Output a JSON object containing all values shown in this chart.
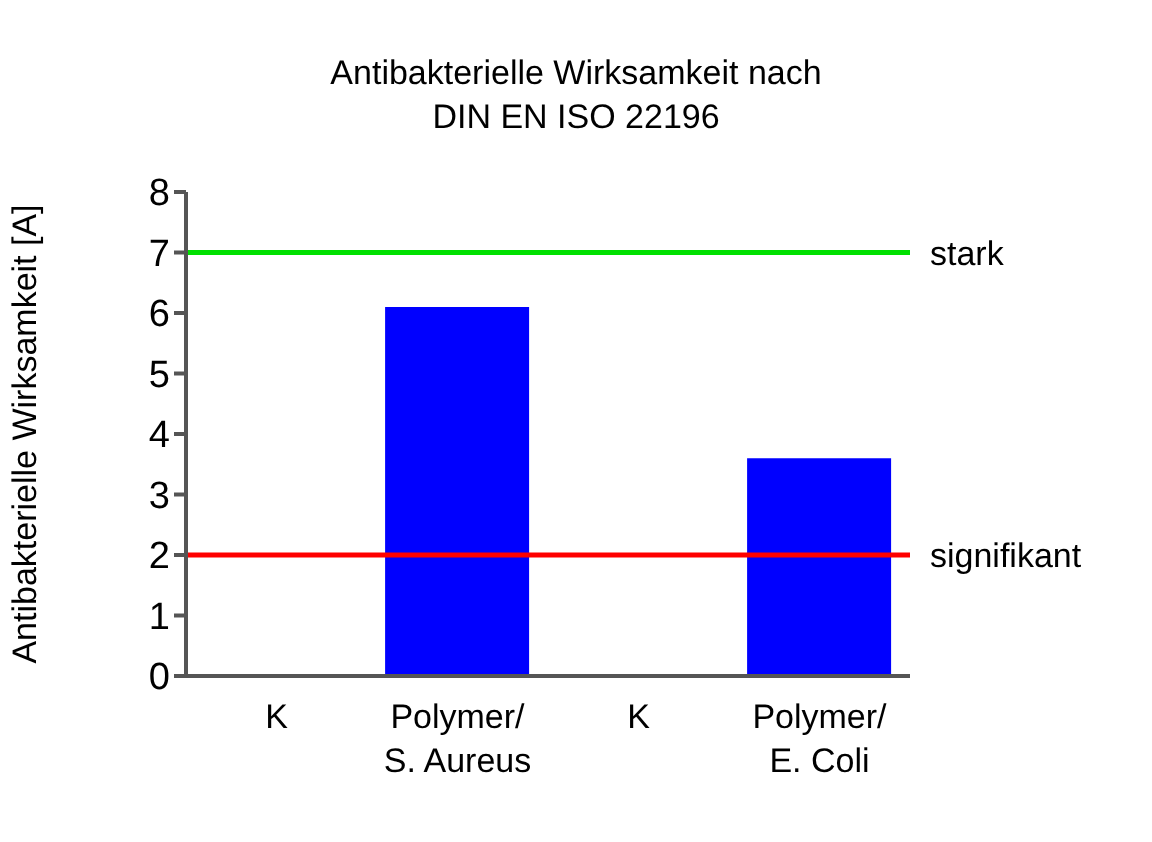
{
  "chart_data": {
    "type": "bar",
    "title": "Antibakterielle Wirksamkeit nach\nDIN EN ISO 22196",
    "ylabel": "Antibakterielle Wirksamkeit [A]",
    "categories": [
      "K",
      "Polymer/\nS. Aureus",
      "K",
      "Polymer/\nE. Coli"
    ],
    "values": [
      0,
      6.1,
      0,
      3.6
    ],
    "color": "#0000ff",
    "ylim": [
      0,
      8
    ],
    "yticks": [
      0,
      1,
      2,
      3,
      4,
      5,
      6,
      7,
      8
    ],
    "grid": false,
    "legend": false,
    "ref_lines": [
      {
        "axis": "y",
        "value": 7,
        "label": "stark",
        "color": "#00e000"
      },
      {
        "axis": "y",
        "value": 2,
        "label": "signifikant",
        "color": "#ff0000"
      }
    ]
  }
}
